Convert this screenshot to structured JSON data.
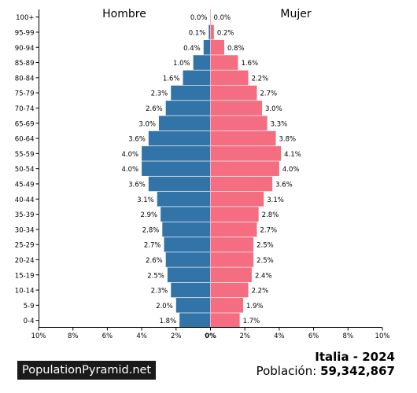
{
  "chart_data": {
    "type": "bar",
    "orientation": "horizontal-pyramid",
    "categories": [
      "100+",
      "95-99",
      "90-94",
      "85-89",
      "80-84",
      "75-79",
      "70-74",
      "65-69",
      "60-64",
      "55-59",
      "50-54",
      "45-49",
      "40-44",
      "35-39",
      "30-34",
      "25-29",
      "20-24",
      "15-19",
      "10-14",
      "5-9",
      "0-4"
    ],
    "series": [
      {
        "name": "Hombre",
        "color": "#3274a8",
        "values": [
          0.0,
          0.1,
          0.4,
          1.0,
          1.6,
          2.3,
          2.6,
          3.0,
          3.6,
          4.0,
          4.0,
          3.6,
          3.1,
          2.9,
          2.8,
          2.7,
          2.6,
          2.5,
          2.3,
          2.0,
          1.8
        ],
        "labels": [
          "0.0%",
          "0.1%",
          "0.4%",
          "1.0%",
          "1.6%",
          "2.3%",
          "2.6%",
          "3.0%",
          "3.6%",
          "4.0%",
          "4.0%",
          "3.6%",
          "3.1%",
          "2.9%",
          "2.8%",
          "2.7%",
          "2.6%",
          "2.5%",
          "2.3%",
          "2.0%",
          "1.8%"
        ]
      },
      {
        "name": "Mujer",
        "color": "#f46d81",
        "values": [
          0.0,
          0.2,
          0.8,
          1.6,
          2.2,
          2.7,
          3.0,
          3.3,
          3.8,
          4.1,
          4.0,
          3.6,
          3.1,
          2.8,
          2.7,
          2.5,
          2.5,
          2.4,
          2.2,
          1.9,
          1.7
        ],
        "labels": [
          "0.0%",
          "0.2%",
          "0.8%",
          "1.6%",
          "2.2%",
          "2.7%",
          "3.0%",
          "3.3%",
          "3.8%",
          "4.1%",
          "4.0%",
          "3.6%",
          "3.1%",
          "2.8%",
          "2.7%",
          "2.5%",
          "2.5%",
          "2.4%",
          "2.2%",
          "1.9%",
          "1.7%"
        ]
      }
    ],
    "xlim": [
      -10,
      10
    ],
    "xticks": [
      "10%",
      "8%",
      "6%",
      "4%",
      "2%",
      "0%",
      "2%",
      "4%",
      "6%",
      "8%",
      "10%"
    ],
    "legend_left": "Hombre",
    "legend_right": "Mujer",
    "grid": false
  },
  "footer": {
    "brand": "PopulationPyramid.net",
    "country": "Italia - 2024",
    "population_label": "Población:",
    "population_value": "59,342,867"
  }
}
